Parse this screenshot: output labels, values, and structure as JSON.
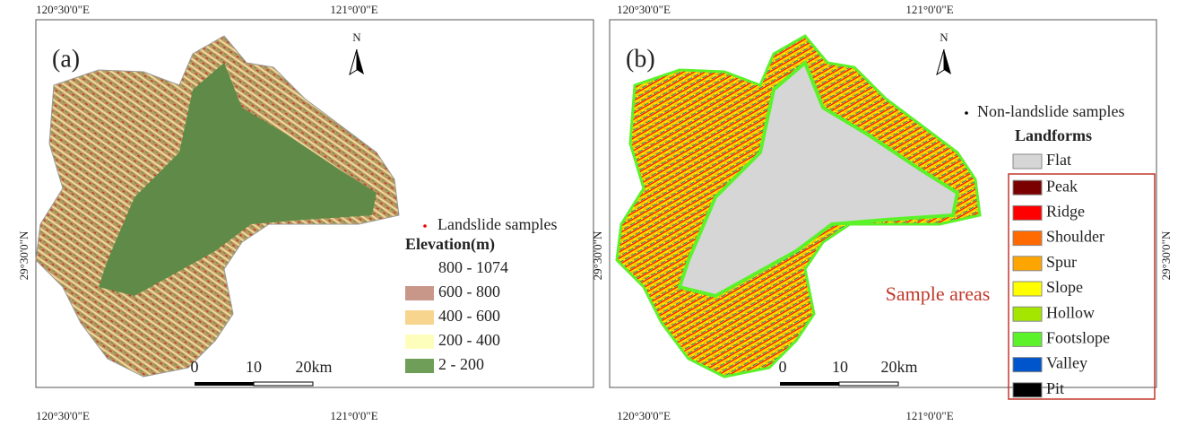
{
  "panels": [
    {
      "label": "(a)",
      "top_ticks": [
        "120°30'0\"E",
        "121°0'0\"E"
      ],
      "bottom_ticks": [
        "120°30'0\"E",
        "121°0'0\"E"
      ],
      "left_ticks": [
        "29°30'0\"N"
      ],
      "right_ticks": [],
      "north": "N",
      "samples": "Landslide samples",
      "legend_title": "Elevation(m)",
      "legend": [
        {
          "label": "800 - 1074",
          "color": "#ffffff"
        },
        {
          "label": "600 - 800",
          "color": "#c9968a"
        },
        {
          "label": "400 - 600",
          "color": "#f8d58f"
        },
        {
          "label": "200 - 400",
          "color": "#fefebc"
        },
        {
          "label": "2 - 200",
          "color": "#6e9e57"
        }
      ],
      "scale": [
        "0",
        "10",
        "20km"
      ]
    },
    {
      "label": "(b)",
      "top_ticks": [
        "120°30'0\"E",
        "121°0'0\"E"
      ],
      "bottom_ticks": [
        "120°30'0\"E",
        "121°0'0\"E"
      ],
      "left_ticks": [
        "29°30'0\"N"
      ],
      "right_ticks": [
        "29°30'0\"N"
      ],
      "north": "N",
      "samples": "Non-landslide samples",
      "legend_title": "Landforms",
      "legend": [
        {
          "label": "Flat",
          "color": "#d6d6d6"
        },
        {
          "label": "Peak",
          "color": "#7a0000"
        },
        {
          "label": "Ridge",
          "color": "#ff0000"
        },
        {
          "label": "Shoulder",
          "color": "#ff6a00"
        },
        {
          "label": "Spur",
          "color": "#ffa500"
        },
        {
          "label": "Slope",
          "color": "#ffff00"
        },
        {
          "label": "Hollow",
          "color": "#a5e600"
        },
        {
          "label": "Footslope",
          "color": "#5cf22a"
        },
        {
          "label": "Valley",
          "color": "#0055cc"
        },
        {
          "label": "Pit",
          "color": "#000000"
        }
      ],
      "scale": [
        "0",
        "10",
        "20km"
      ],
      "annotation": "Sample areas"
    }
  ]
}
